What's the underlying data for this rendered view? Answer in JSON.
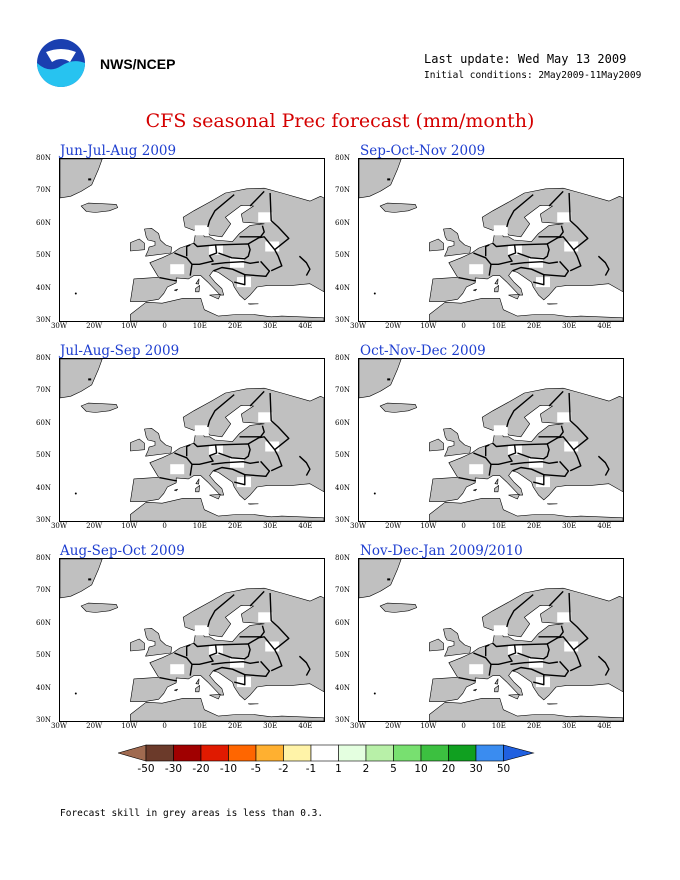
{
  "header": {
    "org_label": "NWS/NCEP",
    "last_update": "Last update: Wed May 13 2009",
    "initial_conditions": "Initial conditions: 2May2009-11May2009"
  },
  "title": "CFS seasonal Prec forecast (mm/month)",
  "axes": {
    "lat_labels": [
      "80N",
      "70N",
      "60N",
      "50N",
      "40N",
      "30N"
    ],
    "lon_labels": [
      "30W",
      "20W",
      "10W",
      "0",
      "10E",
      "20E",
      "30E",
      "40E"
    ]
  },
  "panels": [
    {
      "title": "Jun-Jul-Aug 2009"
    },
    {
      "title": "Sep-Oct-Nov 2009"
    },
    {
      "title": "Jul-Aug-Sep 2009"
    },
    {
      "title": "Oct-Nov-Dec 2009"
    },
    {
      "title": "Aug-Sep-Oct 2009"
    },
    {
      "title": "Nov-Dec-Jan 2009/2010"
    }
  ],
  "legend": {
    "labels": [
      "-50",
      "-30",
      "-20",
      "-10",
      "-5",
      "-2",
      "-1",
      "1",
      "2",
      "5",
      "10",
      "20",
      "30",
      "50"
    ],
    "colors": [
      "#a06a50",
      "#6b3a2a",
      "#a00000",
      "#e01a00",
      "#ff6600",
      "#ffb030",
      "#fff3a8",
      "#ffffff",
      "#e4ffe0",
      "#b8f0a8",
      "#78e070",
      "#3cc040",
      "#10a020",
      "#3a8cf0",
      "#2060e0"
    ]
  },
  "footnote": "Forecast skill in grey areas is less than 0.3."
}
